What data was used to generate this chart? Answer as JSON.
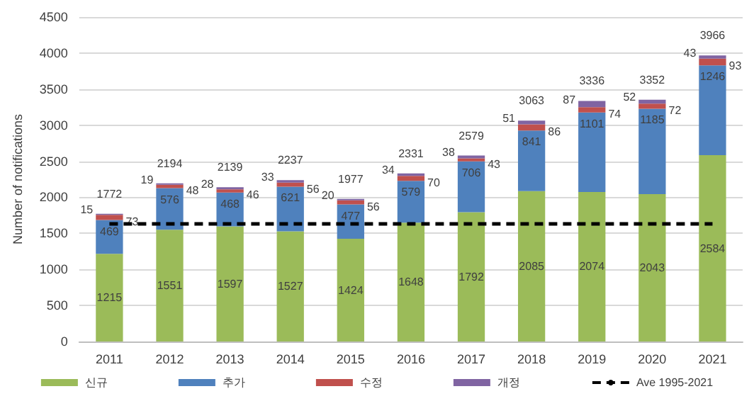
{
  "chart_data": {
    "type": "bar",
    "stacked": true,
    "ylabel": "Number of notifications",
    "categories": [
      "2011",
      "2012",
      "2013",
      "2014",
      "2015",
      "2016",
      "2017",
      "2018",
      "2019",
      "2020",
      "2021"
    ],
    "series": [
      {
        "name": "신규",
        "color": "#9bbb59",
        "values": [
          1215,
          1551,
          1597,
          1527,
          1424,
          1648,
          1792,
          2085,
          2074,
          2043,
          2584
        ],
        "value_labels": [
          "1215",
          "1551",
          "1597",
          "1527",
          "1424",
          "1648",
          "1792",
          "2085",
          "2074",
          "2043",
          "2584"
        ]
      },
      {
        "name": "추가",
        "color": "#4f81bd",
        "values": [
          469,
          576,
          468,
          621,
          477,
          579,
          706,
          841,
          1101,
          1185,
          1246
        ],
        "value_labels": [
          "469",
          "576",
          "468",
          "621",
          "477",
          "579",
          "706",
          "841",
          "1101",
          "1185",
          "1246"
        ]
      },
      {
        "name": "수정",
        "color": "#c0504d",
        "values": [
          73,
          48,
          46,
          56,
          56,
          70,
          43,
          86,
          74,
          72,
          93
        ],
        "value_labels": [
          "73",
          "48",
          "46",
          "56",
          "56",
          "70",
          "43",
          "86",
          "74",
          "72",
          "93"
        ]
      },
      {
        "name": "개정",
        "color": "#8064a2",
        "values": [
          15,
          19,
          28,
          33,
          20,
          34,
          38,
          51,
          87,
          52,
          43
        ],
        "value_labels": [
          "15",
          "19",
          "28",
          "33",
          "20",
          "34",
          "38",
          "51",
          "87",
          "52",
          "43"
        ]
      },
      {
        "name": "Ave 1995-2021",
        "type": "line",
        "color": "#000000",
        "line_style": "dashed",
        "marker": "none",
        "values": [
          1630,
          1630,
          1630,
          1630,
          1630,
          1630,
          1630,
          1630,
          1630,
          1630,
          1630
        ]
      }
    ],
    "totals": [
      "1772",
      "2194",
      "2139",
      "2237",
      "1977",
      "2331",
      "2579",
      "3063",
      "3336",
      "3352",
      "3966"
    ],
    "ylim": [
      0,
      4500
    ],
    "yticks": [
      0,
      500,
      1000,
      1500,
      2000,
      2500,
      3000,
      3500,
      4000,
      4500
    ],
    "grid": "y",
    "legend": "bottom"
  }
}
